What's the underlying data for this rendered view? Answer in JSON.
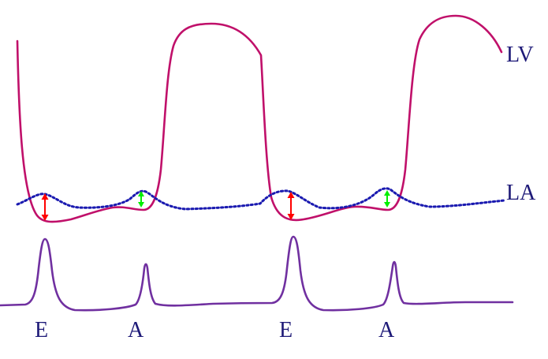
{
  "labels": {
    "lv": "LV",
    "la": "LA",
    "wave_e_1": "E",
    "wave_a_1": "A",
    "wave_e_2": "E",
    "wave_a_2": "A"
  },
  "colors": {
    "lv_trace": "#c0106a",
    "la_trace": "#1a1ab0",
    "doppler_trace": "#7030a0",
    "e_gradient_arrow": "#ff0000",
    "a_gradient_arrow": "#00ee00",
    "label_text": "#1e1a78",
    "background": "#ffffff"
  }
}
